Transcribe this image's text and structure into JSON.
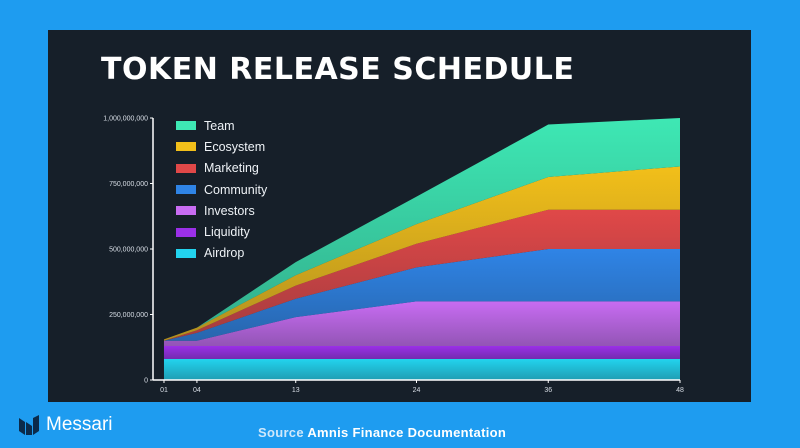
{
  "brand": {
    "name": "Messari"
  },
  "footer": {
    "source_prefix": "Source",
    "source_text": "Amnis Finance Documentation"
  },
  "chart_data": {
    "type": "area",
    "stacked": true,
    "title": "TOKEN RELEASE SCHEDULE",
    "xlabel": "",
    "ylabel": "",
    "x": [
      1,
      4,
      13,
      24,
      36,
      48
    ],
    "x_tick_labels": [
      "01",
      "04",
      "13",
      "24",
      "36",
      "48"
    ],
    "y_tick_values": [
      0,
      250000000,
      500000000,
      750000000,
      1000000000
    ],
    "y_tick_labels": [
      "0",
      "250,000,000",
      "500,000,000",
      "750,000,000",
      "1,000,000,000"
    ],
    "ylim": [
      0,
      1000000000
    ],
    "legend_position": "top-left",
    "grid": false,
    "series": [
      {
        "name": "Airdrop",
        "color": "#22d3ee",
        "values": [
          80000000,
          80000000,
          80000000,
          80000000,
          80000000,
          80000000
        ]
      },
      {
        "name": "Liquidity",
        "color": "#9b30e8",
        "values": [
          50000000,
          50000000,
          50000000,
          50000000,
          50000000,
          50000000
        ]
      },
      {
        "name": "Investors",
        "color": "#c86cf2",
        "values": [
          20000000,
          20000000,
          110000000,
          170000000,
          170000000,
          170000000
        ]
      },
      {
        "name": "Community",
        "color": "#2f84e6",
        "values": [
          0,
          30000000,
          70000000,
          130000000,
          200000000,
          200000000
        ]
      },
      {
        "name": "Marketing",
        "color": "#e04848",
        "values": [
          0,
          10000000,
          50000000,
          90000000,
          150000000,
          150000000
        ]
      },
      {
        "name": "Ecosystem",
        "color": "#f2bf1a",
        "values": [
          5000000,
          10000000,
          40000000,
          75000000,
          125000000,
          165000000
        ]
      },
      {
        "name": "Team",
        "color": "#3ee8b4",
        "values": [
          0,
          0,
          50000000,
          105000000,
          200000000,
          185000000
        ]
      }
    ]
  }
}
